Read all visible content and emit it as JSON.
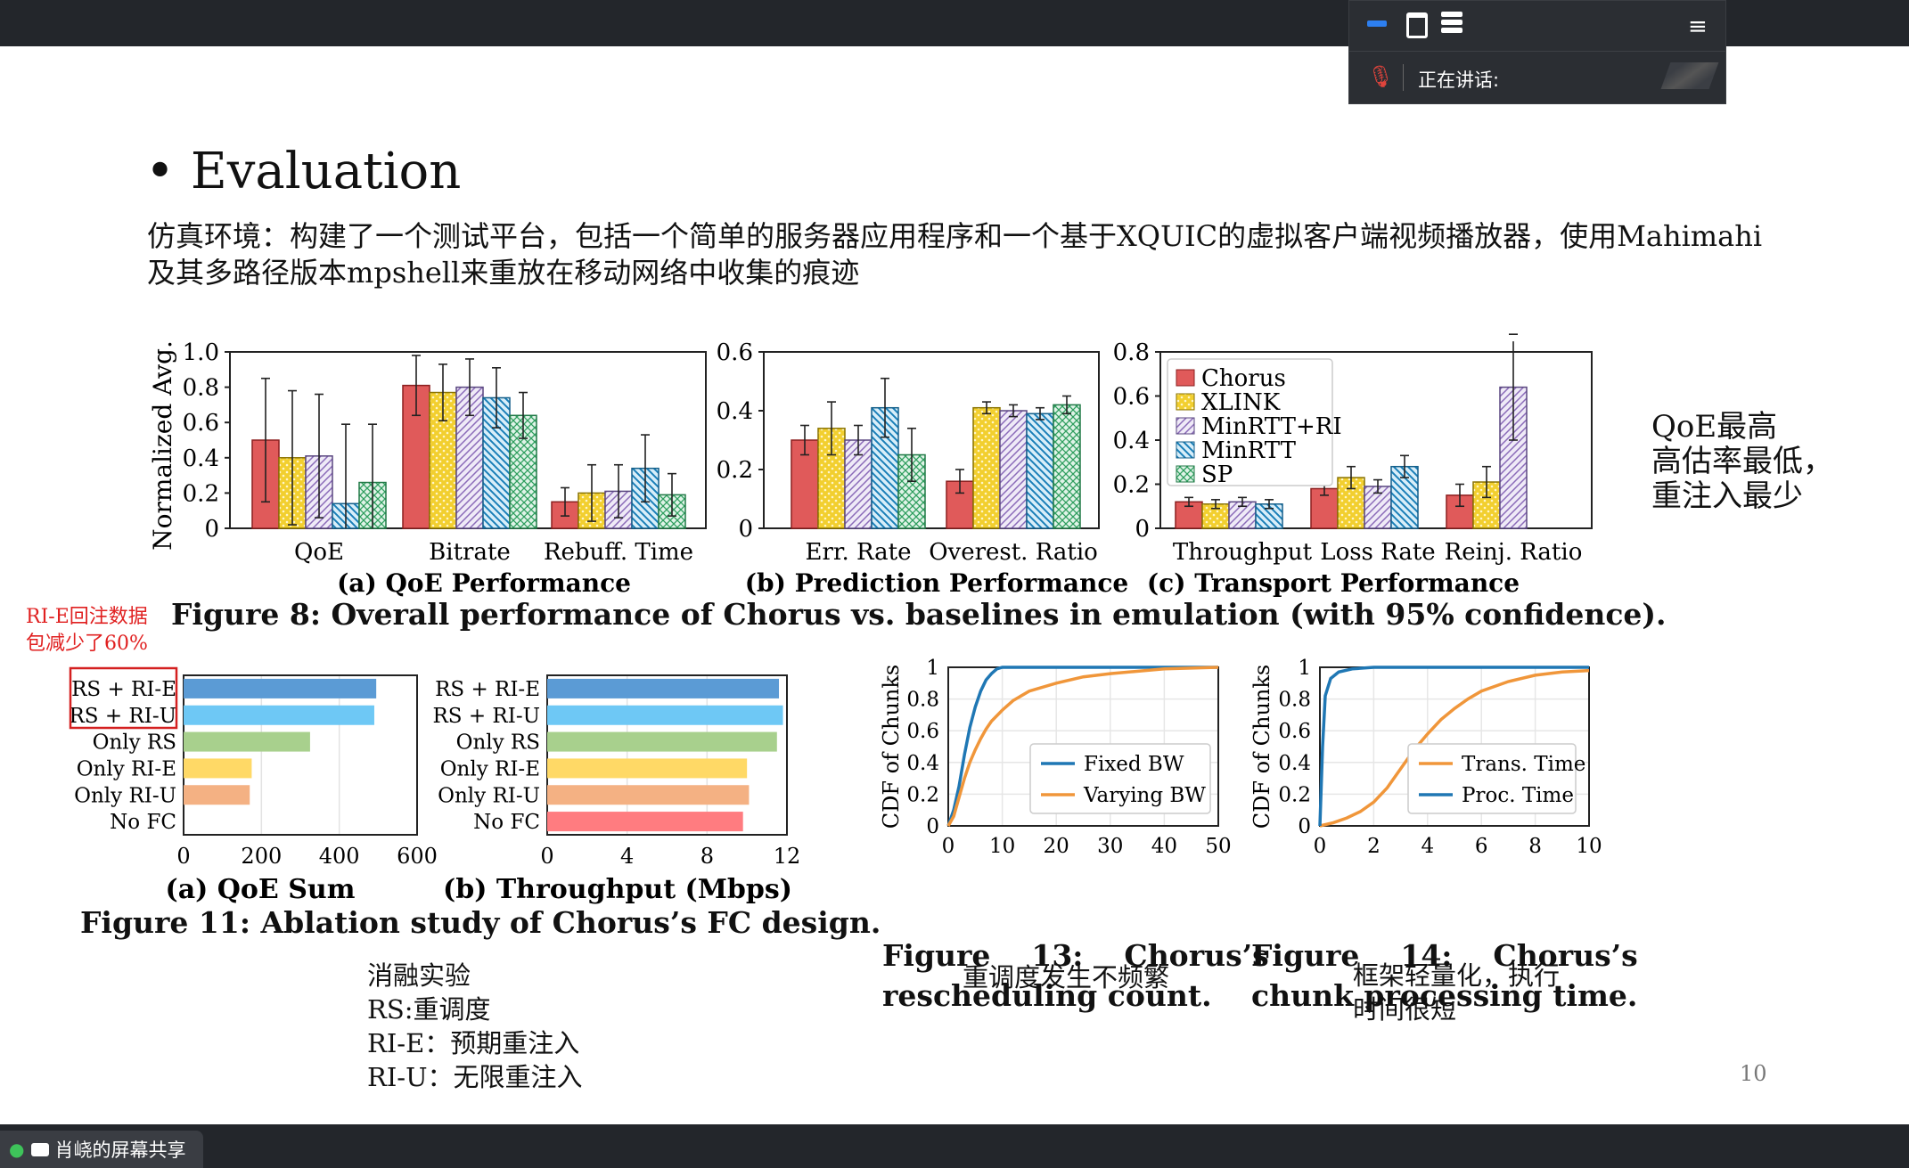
{
  "meeting": {
    "speaking_label": "正在讲话:",
    "share_label": "肖峣的屏幕共享"
  },
  "slide": {
    "title": "Evaluation",
    "subtitle": "仿真环境：构建了一个测试平台，包括一个简单的服务器应用程序和一个基于XQUIC的虚拟客户端视频播放器，使用Mahimahi及其多路径版本mpshell来重放在移动网络中收集的痕迹",
    "right_note": [
      "QoE最高",
      "高估率最低，",
      "重注入最少"
    ],
    "left_note": [
      "RI-E回注数据",
      "包减少了60%"
    ],
    "ablation_note": [
      "消融实验",
      "RS:重调度",
      "RI-E：预期重注入",
      "RI-U：无限重注入"
    ],
    "fig13_note": "重调度发生不频繁",
    "fig14_note": [
      "框架轻量化，执行",
      "时间很短"
    ],
    "page_number": "10",
    "fig8_caption": "Figure 8: Overall performance of Chorus vs. baselines in emulation (with 95% confidence).",
    "fig11_caption": "Figure 11: Ablation study of Chorus’s FC design.",
    "fig13_caption": [
      "Figure    13:    Chorus’s",
      "rescheduling count."
    ],
    "fig14_caption": [
      "Figure    14:    Chorus’s",
      "chunk processing time."
    ]
  },
  "colors": {
    "chorus": "#e05a5a",
    "xlink": "#f2cf2f",
    "minrtt_ri": "#c9b8e0",
    "minrtt": "#4aa6d6",
    "sp": "#5bbf86",
    "blue": "#1f77b4",
    "orange": "#f0963a"
  },
  "chart_data": [
    {
      "type": "bar",
      "subtitle": "(a) QoE Performance",
      "ylabel": "Normalized Avg.",
      "ylim": [
        0,
        1.0
      ],
      "yticks": [
        "0",
        "0.2",
        "0.4",
        "0.6",
        "0.8",
        "1.0"
      ],
      "categories": [
        "QoE",
        "Bitrate",
        "Rebuff. Time"
      ],
      "series": [
        {
          "name": "Chorus",
          "values": [
            0.5,
            0.81,
            0.15
          ],
          "err": [
            0.35,
            0.17,
            0.08
          ]
        },
        {
          "name": "XLINK",
          "values": [
            0.4,
            0.77,
            0.2
          ],
          "err": [
            0.38,
            0.16,
            0.16
          ]
        },
        {
          "name": "MinRTT+RI",
          "values": [
            0.41,
            0.8,
            0.21
          ],
          "err": [
            0.35,
            0.16,
            0.15
          ]
        },
        {
          "name": "MinRTT",
          "values": [
            0.14,
            0.74,
            0.34
          ],
          "err": [
            0.45,
            0.17,
            0.19
          ]
        },
        {
          "name": "SP",
          "values": [
            0.26,
            0.64,
            0.19
          ],
          "err": [
            0.33,
            0.13,
            0.12
          ]
        }
      ]
    },
    {
      "type": "bar",
      "subtitle": "(b) Prediction Performance",
      "ylim": [
        0,
        0.6
      ],
      "yticks": [
        "0",
        "0.2",
        "0.4",
        "0.6"
      ],
      "categories": [
        "Err. Rate",
        "Overest. Ratio"
      ],
      "series": [
        {
          "name": "Chorus",
          "values": [
            0.3,
            0.16
          ],
          "err": [
            0.05,
            0.04
          ]
        },
        {
          "name": "XLINK",
          "values": [
            0.34,
            0.41
          ],
          "err": [
            0.09,
            0.02
          ]
        },
        {
          "name": "MinRTT+RI",
          "values": [
            0.3,
            0.4
          ],
          "err": [
            0.05,
            0.02
          ]
        },
        {
          "name": "MinRTT",
          "values": [
            0.41,
            0.39
          ],
          "err": [
            0.1,
            0.02
          ]
        },
        {
          "name": "SP",
          "values": [
            0.25,
            0.42
          ],
          "err": [
            0.09,
            0.03
          ]
        }
      ]
    },
    {
      "type": "bar",
      "subtitle": "(c) Transport Performance",
      "ylim": [
        0,
        0.8
      ],
      "yticks": [
        "0",
        "0.2",
        "0.4",
        "0.6",
        "0.8"
      ],
      "legend": "top-left",
      "categories": [
        "Throughput",
        "Loss Rate",
        "Reinj. Ratio"
      ],
      "series": [
        {
          "name": "Chorus",
          "values": [
            0.12,
            0.18,
            0.15
          ],
          "err": [
            0.02,
            0.03,
            0.05
          ]
        },
        {
          "name": "XLINK",
          "values": [
            0.11,
            0.23,
            0.21
          ],
          "err": [
            0.02,
            0.05,
            0.07
          ]
        },
        {
          "name": "MinRTT+RI",
          "values": [
            0.12,
            0.19,
            0.64
          ],
          "err": [
            0.02,
            0.03,
            0.24
          ]
        },
        {
          "name": "MinRTT",
          "values": [
            0.11,
            0.28,
            0.0
          ],
          "err": [
            0.02,
            0.05,
            0.0
          ]
        },
        {
          "name": "SP",
          "values": [
            0.0,
            0.0,
            0.0
          ],
          "err": [
            0,
            0,
            0
          ]
        }
      ]
    },
    {
      "type": "bar",
      "subtitle": "(a) QoE Sum",
      "xlim": [
        0,
        600
      ],
      "xticks": [
        "0",
        "200",
        "400",
        "600"
      ],
      "categories": [
        "RS + RI-E",
        "RS + RI-U",
        "Only RS",
        "Only RI-E",
        "Only RI-U",
        "No FC"
      ],
      "values": [
        495,
        490,
        325,
        175,
        170,
        0
      ],
      "colors": [
        "#5b9bd5",
        "#6ec8f5",
        "#a8d08d",
        "#ffd966",
        "#f4b183",
        "#ff7c80"
      ]
    },
    {
      "type": "bar",
      "subtitle": "(b) Throughput (Mbps)",
      "xlim": [
        0,
        12
      ],
      "xticks": [
        "0",
        "4",
        "8",
        "12"
      ],
      "categories": [
        "RS + RI-E",
        "RS + RI-U",
        "Only RS",
        "Only RI-E",
        "Only RI-U",
        "No FC"
      ],
      "values": [
        11.6,
        11.8,
        11.5,
        10.0,
        10.1,
        9.8
      ],
      "colors": [
        "#5b9bd5",
        "#6ec8f5",
        "#a8d08d",
        "#ffd966",
        "#f4b183",
        "#ff7c80"
      ]
    },
    {
      "type": "line",
      "ylabel": "CDF of Chunks",
      "xlim": [
        0,
        50
      ],
      "xticks": [
        "0",
        "10",
        "20",
        "30",
        "40",
        "50"
      ],
      "yticks": [
        "0",
        "0.2",
        "0.4",
        "0.6",
        "0.8",
        "1"
      ],
      "series": [
        {
          "name": "Fixed BW",
          "color": "#1f77b4",
          "points": [
            [
              0,
              0
            ],
            [
              1,
              0.1
            ],
            [
              2,
              0.25
            ],
            [
              3,
              0.45
            ],
            [
              4,
              0.62
            ],
            [
              5,
              0.75
            ],
            [
              6,
              0.85
            ],
            [
              7,
              0.92
            ],
            [
              8,
              0.96
            ],
            [
              9,
              0.99
            ],
            [
              10,
              1
            ],
            [
              50,
              1
            ]
          ]
        },
        {
          "name": "Varying BW",
          "color": "#f0963a",
          "points": [
            [
              0,
              0
            ],
            [
              1,
              0.06
            ],
            [
              2,
              0.18
            ],
            [
              3,
              0.3
            ],
            [
              4,
              0.4
            ],
            [
              5,
              0.48
            ],
            [
              6,
              0.55
            ],
            [
              7,
              0.61
            ],
            [
              8,
              0.66
            ],
            [
              10,
              0.73
            ],
            [
              12,
              0.79
            ],
            [
              15,
              0.85
            ],
            [
              20,
              0.9
            ],
            [
              25,
              0.94
            ],
            [
              30,
              0.96
            ],
            [
              40,
              0.99
            ],
            [
              50,
              1
            ]
          ]
        }
      ]
    },
    {
      "type": "line",
      "ylabel": "CDF of Chunks",
      "xlim": [
        0,
        10
      ],
      "xticks": [
        "0",
        "2",
        "4",
        "6",
        "8",
        "10"
      ],
      "yticks": [
        "0",
        "0.2",
        "0.4",
        "0.6",
        "0.8",
        "1"
      ],
      "series": [
        {
          "name": "Trans. Time",
          "color": "#f0963a",
          "points": [
            [
              0,
              0
            ],
            [
              0.5,
              0.02
            ],
            [
              1,
              0.05
            ],
            [
              1.5,
              0.09
            ],
            [
              2,
              0.15
            ],
            [
              2.5,
              0.24
            ],
            [
              3,
              0.36
            ],
            [
              3.5,
              0.48
            ],
            [
              4,
              0.58
            ],
            [
              4.5,
              0.67
            ],
            [
              5,
              0.74
            ],
            [
              5.5,
              0.8
            ],
            [
              6,
              0.85
            ],
            [
              7,
              0.91
            ],
            [
              8,
              0.95
            ],
            [
              9,
              0.97
            ],
            [
              10,
              0.98
            ]
          ]
        },
        {
          "name": "Proc. Time",
          "color": "#1f77b4",
          "points": [
            [
              0,
              0
            ],
            [
              0.1,
              0.5
            ],
            [
              0.2,
              0.82
            ],
            [
              0.4,
              0.93
            ],
            [
              0.7,
              0.97
            ],
            [
              1.2,
              0.99
            ],
            [
              2,
              1
            ],
            [
              10,
              1
            ]
          ]
        }
      ]
    }
  ]
}
